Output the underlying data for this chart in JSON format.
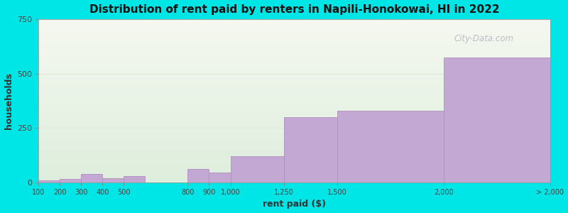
{
  "title": "Distribution of rent paid by renters in Napili-Honokowai, HI in 2022",
  "xlabel": "rent paid ($)",
  "ylabel": "households",
  "background_outer": "#00e5e5",
  "bar_color": "#c4a8d4",
  "bar_edge_color": "#b090c0",
  "watermark": "City-Data.com",
  "ylim": [
    0,
    750
  ],
  "yticks": [
    0,
    250,
    500,
    750
  ],
  "tick_positions": [
    100,
    200,
    300,
    400,
    500,
    800,
    900,
    1000,
    1250,
    1500,
    2000,
    2500
  ],
  "tick_labels": [
    "100",
    "200",
    "300",
    "400",
    "500",
    "800",
    "9001,000",
    "1,250",
    "1,500",
    "2,000",
    "> 2,000",
    ""
  ],
  "bar_lefts": [
    100,
    200,
    300,
    400,
    500,
    800,
    900,
    1000,
    1250,
    1500,
    2000
  ],
  "bar_widths": [
    100,
    100,
    100,
    100,
    100,
    100,
    100,
    250,
    250,
    500,
    500
  ],
  "bar_heights": [
    10,
    15,
    40,
    20,
    30,
    60,
    45,
    120,
    300,
    330,
    575
  ]
}
